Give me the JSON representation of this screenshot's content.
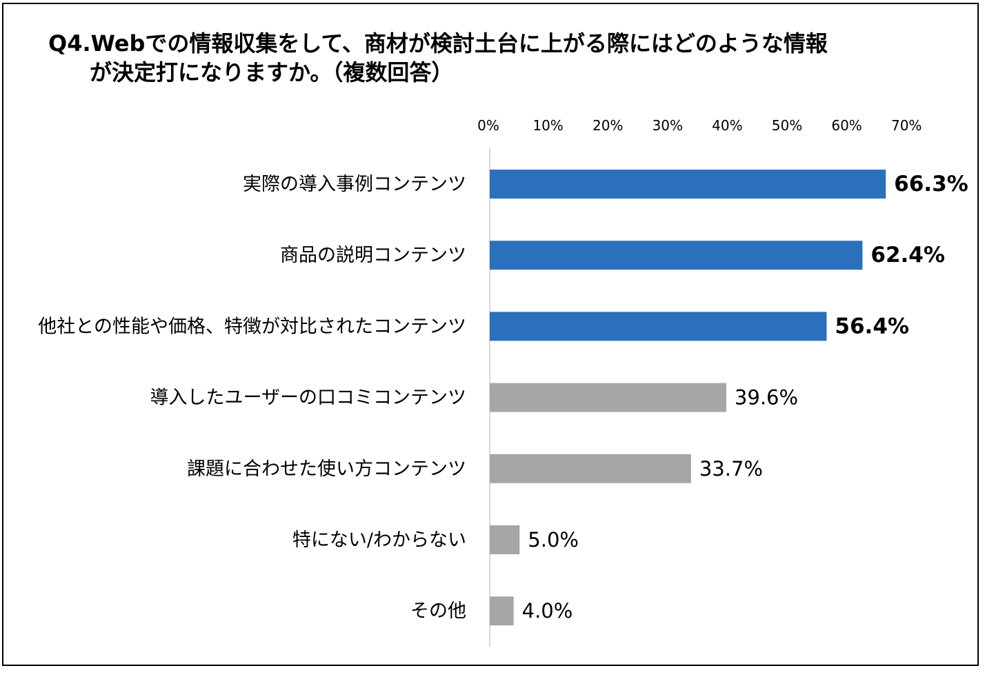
{
  "title": {
    "line1": "Q4.Webでの情報収集をして、商材が検討土台に上がる際にはどのような情報",
    "line2": "が決定打になりますか。（複数回答）"
  },
  "colors": {
    "highlight": "#2B70BD",
    "normal": "#A6A6A6",
    "axis": "#D9D9D9"
  },
  "chart_data": {
    "type": "bar",
    "orientation": "horizontal",
    "categories": [
      "実際の導入事例コンテンツ",
      "商品の説明コンテンツ",
      "他社との性能や価格、特徴が対比されたコンテンツ",
      "導入したユーザーの口コミコンテンツ",
      "課題に合わせた使い方コンテンツ",
      "特にない/わからない",
      "その他"
    ],
    "values": [
      66.3,
      62.4,
      56.4,
      39.6,
      33.7,
      5.0,
      4.0
    ],
    "value_labels": [
      "66.3%",
      "62.4%",
      "56.4%",
      "39.6%",
      "33.7%",
      "5.0%",
      "4.0%"
    ],
    "highlighted": [
      true,
      true,
      true,
      false,
      false,
      false,
      false
    ],
    "x_ticks": [
      "0%",
      "10%",
      "20%",
      "30%",
      "40%",
      "50%",
      "60%",
      "70%"
    ],
    "xlim": [
      0,
      70
    ],
    "x_axis_position": "top",
    "grid": false,
    "legend": "none"
  }
}
